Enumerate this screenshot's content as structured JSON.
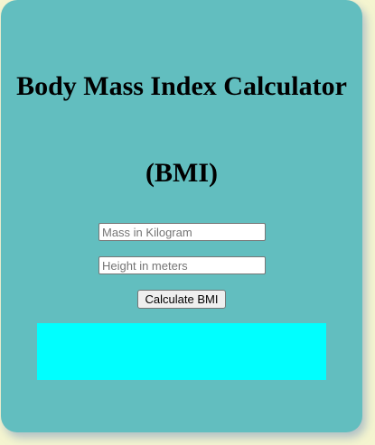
{
  "calculator": {
    "title_line1": "Body Mass Index Calculator",
    "title_line2": "(BMI)",
    "mass_input": {
      "placeholder": "Mass in Kilogram",
      "value": ""
    },
    "height_input": {
      "placeholder": "Height in meters",
      "value": ""
    },
    "calculate_label": "Calculate BMI",
    "result_text": ""
  },
  "colors": {
    "page_background": "#f5f5d0",
    "card_background": "#62bebf",
    "result_background": "#00ffff"
  }
}
